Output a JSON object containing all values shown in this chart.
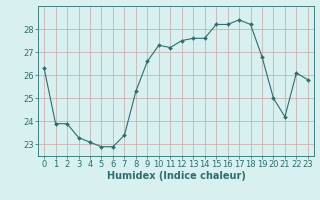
{
  "x": [
    0,
    1,
    2,
    3,
    4,
    5,
    6,
    7,
    8,
    9,
    10,
    11,
    12,
    13,
    14,
    15,
    16,
    17,
    18,
    19,
    20,
    21,
    22,
    23
  ],
  "y": [
    26.3,
    23.9,
    23.9,
    23.3,
    23.1,
    22.9,
    22.9,
    23.4,
    25.3,
    26.6,
    27.3,
    27.2,
    27.5,
    27.6,
    27.6,
    28.2,
    28.2,
    28.4,
    28.2,
    26.8,
    25.0,
    24.2,
    26.1,
    25.8
  ],
  "line_color": "#2d6e6e",
  "marker": "D",
  "marker_size": 2.0,
  "bg_color": "#d8f0f0",
  "grid_color": "#c8a8a8",
  "xlabel": "Humidex (Indice chaleur)",
  "ylim": [
    22.5,
    29.0
  ],
  "xlim": [
    -0.5,
    23.5
  ],
  "yticks": [
    23,
    24,
    25,
    26,
    27,
    28
  ],
  "xticks": [
    0,
    1,
    2,
    3,
    4,
    5,
    6,
    7,
    8,
    9,
    10,
    11,
    12,
    13,
    14,
    15,
    16,
    17,
    18,
    19,
    20,
    21,
    22,
    23
  ],
  "tick_color": "#2d6e6e",
  "label_color": "#2d6e6e",
  "xlabel_fontsize": 7,
  "tick_fontsize": 6,
  "line_width": 0.8
}
